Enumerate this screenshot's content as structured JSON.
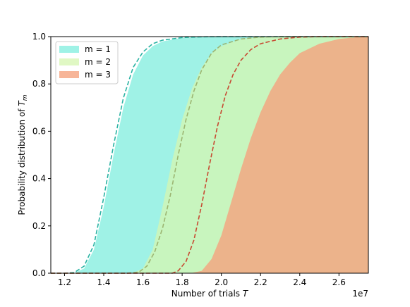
{
  "chart_data": {
    "type": "area",
    "xlabel": "Number of trials",
    "xlabel_symbol": "T",
    "ylabel": "Probability distribution of",
    "ylabel_symbol": "T",
    "ylabel_subscript": "m",
    "x_offset_label": "1e7",
    "xlim": [
      1.13,
      2.75
    ],
    "ylim": [
      0.0,
      1.0
    ],
    "xticks": [
      1.2,
      1.4,
      1.6,
      1.8,
      2.0,
      2.2,
      2.4,
      2.6
    ],
    "xtick_labels": [
      "1.2",
      "1.4",
      "1.6",
      "1.8",
      "2.0",
      "2.2",
      "2.4",
      "2.6"
    ],
    "yticks": [
      0.0,
      0.2,
      0.4,
      0.6,
      0.8,
      1.0
    ],
    "ytick_labels": [
      "0.0",
      "0.2",
      "0.4",
      "0.6",
      "0.8",
      "1.0"
    ],
    "grid": false,
    "legend_position": "top-left",
    "series": [
      {
        "name": "m = 1",
        "fill_color": "#7FEEDD",
        "fill_opacity": 0.75,
        "curve_color": "#2AB3A3",
        "filled_cdf": [
          [
            1.2,
            0.0
          ],
          [
            1.25,
            0.001
          ],
          [
            1.3,
            0.02
          ],
          [
            1.35,
            0.1
          ],
          [
            1.4,
            0.28
          ],
          [
            1.45,
            0.5
          ],
          [
            1.5,
            0.7
          ],
          [
            1.55,
            0.84
          ],
          [
            1.6,
            0.92
          ],
          [
            1.65,
            0.96
          ],
          [
            1.7,
            0.98
          ],
          [
            1.8,
            0.995
          ],
          [
            1.9,
            0.999
          ],
          [
            2.0,
            1.0
          ],
          [
            2.75,
            1.0
          ]
        ],
        "dashed_cdf": [
          [
            1.2,
            0.0
          ],
          [
            1.25,
            0.003
          ],
          [
            1.3,
            0.03
          ],
          [
            1.35,
            0.12
          ],
          [
            1.4,
            0.32
          ],
          [
            1.45,
            0.54
          ],
          [
            1.5,
            0.74
          ],
          [
            1.55,
            0.87
          ],
          [
            1.6,
            0.935
          ],
          [
            1.65,
            0.97
          ],
          [
            1.7,
            0.985
          ],
          [
            1.8,
            0.996
          ],
          [
            1.9,
            0.999
          ],
          [
            2.0,
            1.0
          ],
          [
            2.75,
            1.0
          ]
        ]
      },
      {
        "name": "m = 2",
        "fill_color": "#D6F5B0",
        "fill_opacity": 0.75,
        "curve_color": "#9CB572",
        "filled_cdf": [
          [
            1.5,
            0.0
          ],
          [
            1.55,
            0.001
          ],
          [
            1.6,
            0.02
          ],
          [
            1.65,
            0.1
          ],
          [
            1.7,
            0.28
          ],
          [
            1.75,
            0.48
          ],
          [
            1.8,
            0.65
          ],
          [
            1.85,
            0.78
          ],
          [
            1.9,
            0.87
          ],
          [
            1.95,
            0.93
          ],
          [
            2.0,
            0.96
          ],
          [
            2.1,
            0.99
          ],
          [
            2.2,
            0.998
          ],
          [
            2.3,
            1.0
          ],
          [
            2.75,
            1.0
          ]
        ],
        "dashed_cdf": [
          [
            1.52,
            0.0
          ],
          [
            1.58,
            0.005
          ],
          [
            1.62,
            0.03
          ],
          [
            1.66,
            0.09
          ],
          [
            1.7,
            0.19
          ],
          [
            1.74,
            0.33
          ],
          [
            1.78,
            0.5
          ],
          [
            1.82,
            0.65
          ],
          [
            1.86,
            0.77
          ],
          [
            1.9,
            0.86
          ],
          [
            1.95,
            0.93
          ],
          [
            2.0,
            0.965
          ],
          [
            2.1,
            0.99
          ],
          [
            2.2,
            0.998
          ],
          [
            2.3,
            1.0
          ],
          [
            2.75,
            1.0
          ]
        ]
      },
      {
        "name": "m = 3",
        "fill_color": "#F5A37E",
        "fill_opacity": 0.8,
        "curve_color": "#C74A32",
        "filled_cdf": [
          [
            1.8,
            0.0
          ],
          [
            1.85,
            0.001
          ],
          [
            1.9,
            0.01
          ],
          [
            1.95,
            0.06
          ],
          [
            2.0,
            0.16
          ],
          [
            2.05,
            0.3
          ],
          [
            2.1,
            0.44
          ],
          [
            2.15,
            0.57
          ],
          [
            2.2,
            0.68
          ],
          [
            2.25,
            0.77
          ],
          [
            2.3,
            0.84
          ],
          [
            2.35,
            0.89
          ],
          [
            2.4,
            0.93
          ],
          [
            2.5,
            0.97
          ],
          [
            2.6,
            0.99
          ],
          [
            2.7,
            0.998
          ],
          [
            2.75,
            1.0
          ]
        ],
        "dashed_cdf": [
          [
            1.75,
            0.0
          ],
          [
            1.78,
            0.01
          ],
          [
            1.82,
            0.05
          ],
          [
            1.86,
            0.14
          ],
          [
            1.9,
            0.29
          ],
          [
            1.94,
            0.46
          ],
          [
            1.98,
            0.62
          ],
          [
            2.02,
            0.75
          ],
          [
            2.06,
            0.84
          ],
          [
            2.1,
            0.9
          ],
          [
            2.15,
            0.945
          ],
          [
            2.2,
            0.97
          ],
          [
            2.3,
            0.99
          ],
          [
            2.4,
            0.998
          ],
          [
            2.5,
            1.0
          ],
          [
            2.75,
            1.0
          ]
        ]
      }
    ]
  }
}
